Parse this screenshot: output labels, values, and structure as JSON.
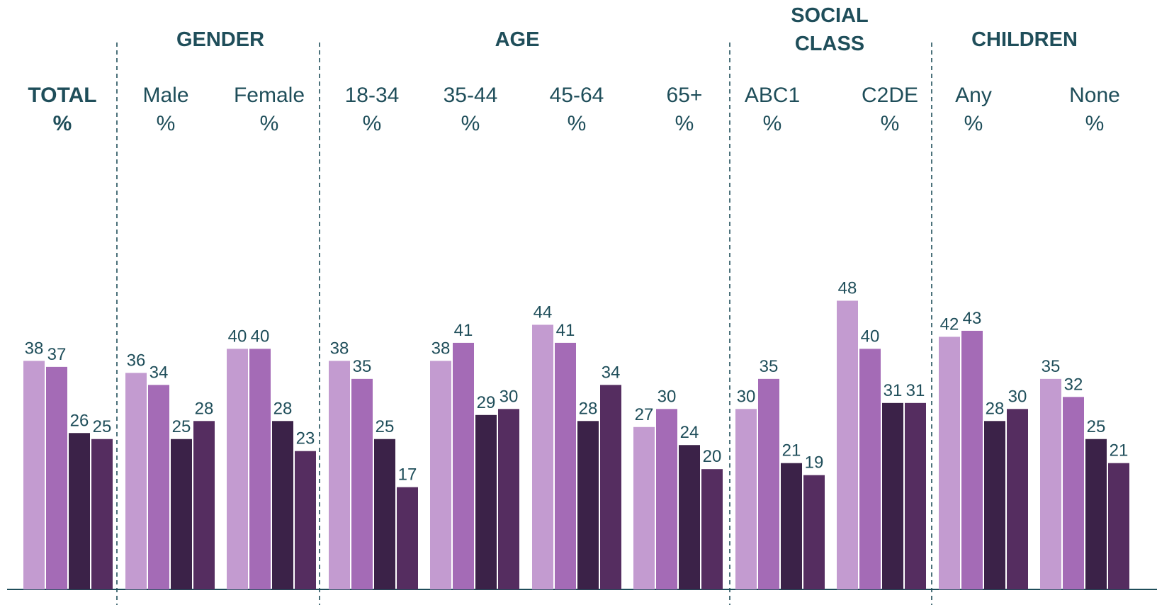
{
  "colors": {
    "text": "#1f4e5a",
    "divider": "#1f4e5a",
    "axis": "#1f4e5a",
    "series": [
      "#c39bd0",
      "#a46bb6",
      "#3b2248",
      "#552d60"
    ]
  },
  "chart_data": {
    "type": "bar",
    "groups": [
      {
        "title": "",
        "columns": [
          0
        ]
      },
      {
        "title": "GENDER",
        "columns": [
          1,
          2
        ]
      },
      {
        "title": "AGE",
        "columns": [
          3,
          4,
          5,
          6
        ]
      },
      {
        "title": "SOCIAL CLASS",
        "title_lines": [
          "SOCIAL",
          "CLASS"
        ],
        "columns": [
          7,
          8
        ]
      },
      {
        "title": "CHILDREN",
        "columns": [
          9,
          10
        ]
      }
    ],
    "categories": [
      "TOTAL %",
      "Male %",
      "Female %",
      "18-34 %",
      "35-44 %",
      "45-64 %",
      "65+ %",
      "ABC1 %",
      "C2DE %",
      "Any %",
      "None %"
    ],
    "category_lines": [
      [
        "TOTAL",
        "%"
      ],
      [
        "Male",
        "%"
      ],
      [
        "Female",
        "%"
      ],
      [
        "18-34",
        "%"
      ],
      [
        "35-44",
        "%"
      ],
      [
        "45-64",
        "%"
      ],
      [
        "65+",
        "%"
      ],
      [
        "ABC1",
        "%"
      ],
      [
        "C2DE",
        "%"
      ],
      [
        "Any",
        "%"
      ],
      [
        "None",
        "%"
      ]
    ],
    "bold_categories": [
      0
    ],
    "series": [
      {
        "values": [
          38,
          36,
          40,
          38,
          38,
          44,
          27,
          30,
          48,
          42,
          35
        ]
      },
      {
        "values": [
          37,
          34,
          40,
          35,
          41,
          41,
          30,
          35,
          40,
          43,
          32
        ]
      },
      {
        "values": [
          26,
          25,
          28,
          25,
          29,
          28,
          24,
          21,
          31,
          28,
          25
        ]
      },
      {
        "values": [
          25,
          28,
          23,
          17,
          30,
          34,
          20,
          19,
          31,
          30,
          21
        ]
      }
    ],
    "ylim": [
      0,
      60
    ],
    "grid": false,
    "legend": "none"
  }
}
